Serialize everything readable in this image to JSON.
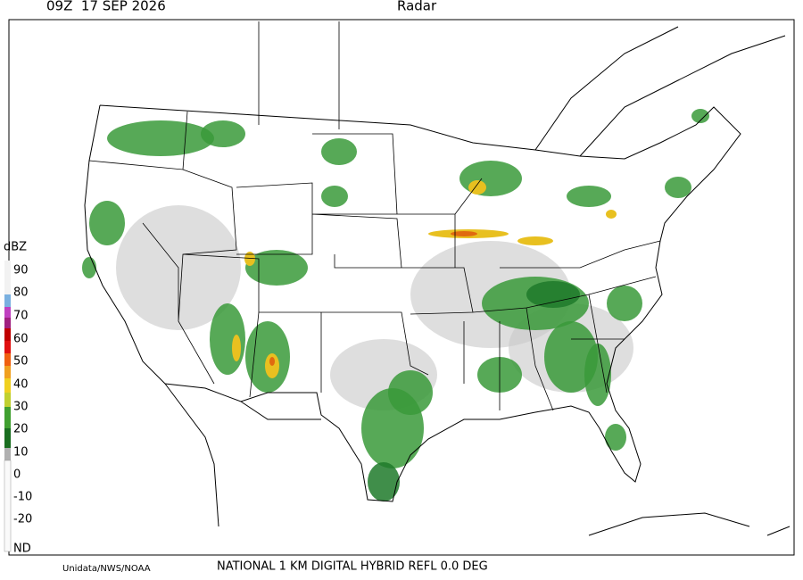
{
  "header": {
    "time": "09Z  17 SEP 2026",
    "product": "Radar"
  },
  "legend": {
    "unit": "dBZ",
    "labels": [
      "90",
      "80",
      "70",
      "60",
      "50",
      "40",
      "30",
      "20",
      "10",
      "0",
      "-10",
      "-20",
      "ND"
    ]
  },
  "footer": {
    "credit": "Unidata/NWS/NOAA",
    "description": "NATIONAL 1 KM DIGITAL HYBRID REFL 0.0 DEG"
  }
}
